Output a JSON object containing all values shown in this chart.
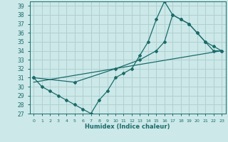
{
  "xlabel": "Humidex (Indice chaleur)",
  "ylabel": "",
  "bg_color": "#cce8e8",
  "grid_color": "#b0d0d0",
  "line_color": "#1a6b6b",
  "xlim": [
    -0.5,
    23.5
  ],
  "ylim": [
    27,
    39.5
  ],
  "yticks": [
    27,
    28,
    29,
    30,
    31,
    32,
    33,
    34,
    35,
    36,
    37,
    38,
    39
  ],
  "xticks": [
    0,
    1,
    2,
    3,
    4,
    5,
    6,
    7,
    8,
    9,
    10,
    11,
    12,
    13,
    14,
    15,
    16,
    17,
    18,
    19,
    20,
    21,
    22,
    23
  ],
  "line1_x": [
    0,
    1,
    2,
    3,
    4,
    5,
    6,
    7,
    8,
    9,
    10,
    11,
    12,
    13,
    14,
    15,
    16,
    17,
    18,
    19,
    20,
    21,
    22,
    23
  ],
  "line1_y": [
    31,
    30,
    29.5,
    29,
    28.5,
    28,
    27.5,
    27,
    28.5,
    29.5,
    31,
    31.5,
    32,
    33.5,
    35,
    37.5,
    39.5,
    38,
    37.5,
    37,
    36,
    35,
    34,
    34
  ],
  "line2_x": [
    0,
    5,
    10,
    13,
    15,
    16,
    17,
    18,
    19,
    20,
    21,
    22,
    23
  ],
  "line2_y": [
    31,
    30.5,
    32,
    33,
    34,
    35,
    38,
    37.5,
    37,
    36,
    35,
    34.5,
    34
  ],
  "line3_x": [
    0,
    23
  ],
  "line3_y": [
    30.5,
    34
  ],
  "marker": "D",
  "markersize": 2.0
}
